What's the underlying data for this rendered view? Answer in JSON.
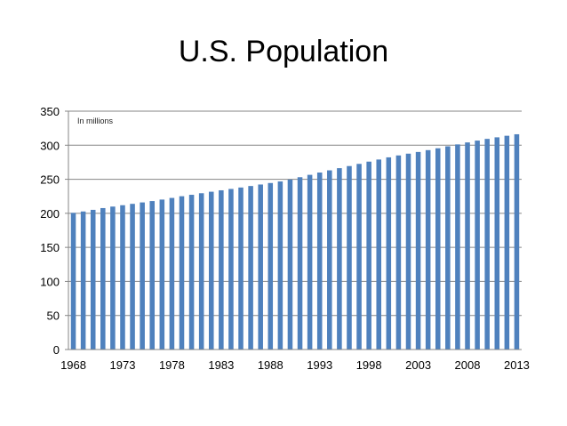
{
  "chart_data": {
    "type": "bar",
    "title": "U.S. Population",
    "annotation": "In millions",
    "xlabel": "",
    "ylabel": "",
    "ylim": [
      0,
      350
    ],
    "y_ticks": [
      "0",
      "50",
      "100",
      "150",
      "200",
      "250",
      "300",
      "350"
    ],
    "x_ticks": [
      "1968",
      "1973",
      "1978",
      "1983",
      "1988",
      "1993",
      "1998",
      "2003",
      "2008",
      "2013"
    ],
    "grid": true,
    "legend": "none",
    "bar_color": "#4F81BD",
    "categories": [
      "1968",
      "1969",
      "1970",
      "1971",
      "1972",
      "1973",
      "1974",
      "1975",
      "1976",
      "1977",
      "1978",
      "1979",
      "1980",
      "1981",
      "1982",
      "1983",
      "1984",
      "1985",
      "1986",
      "1987",
      "1988",
      "1989",
      "1990",
      "1991",
      "1992",
      "1993",
      "1994",
      "1995",
      "1996",
      "1997",
      "1998",
      "1999",
      "2000",
      "2001",
      "2002",
      "2003",
      "2004",
      "2005",
      "2006",
      "2007",
      "2008",
      "2009",
      "2010",
      "2011",
      "2012",
      "2013"
    ],
    "values": [
      200.7,
      202.7,
      205.1,
      207.7,
      209.9,
      211.9,
      213.9,
      216.0,
      218.0,
      220.2,
      222.6,
      225.1,
      227.2,
      229.5,
      231.7,
      233.8,
      235.8,
      237.9,
      240.1,
      242.3,
      244.5,
      246.8,
      249.6,
      253.0,
      256.5,
      259.9,
      263.1,
      266.3,
      269.4,
      272.6,
      275.9,
      279.0,
      282.2,
      285.0,
      287.6,
      290.1,
      292.8,
      295.5,
      298.4,
      301.2,
      304.1,
      306.8,
      309.3,
      311.6,
      313.9,
      316.1
    ]
  }
}
